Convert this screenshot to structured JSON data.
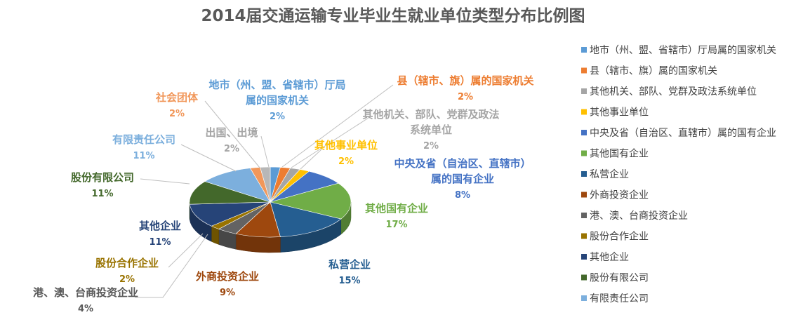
{
  "chart_data": {
    "type": "pie",
    "title": "2014届交通运输专业毕业生就业单位类型分布比例图",
    "legend_position": "right",
    "slices": [
      {
        "name": "地市（州、盟、省辖市）厅局属的国家机关",
        "label_lines": [
          "地市（州、盟、省辖市）厅局",
          "属的国家机关"
        ],
        "value": 2,
        "pct_label": "2%",
        "color": "#5b9bd5"
      },
      {
        "name": "县（辖市、旗）属的国家机关",
        "label_lines": [
          "县（辖市、旗）属的国家机关"
        ],
        "value": 2,
        "pct_label": "2%",
        "color": "#ed7d31"
      },
      {
        "name": "其他机关、部队、党群及政法系统单位",
        "label_lines": [
          "其他机关、部队、党群及政法",
          "系统单位"
        ],
        "value": 2,
        "pct_label": "2%",
        "color": "#a5a5a5"
      },
      {
        "name": "其他事业单位",
        "label_lines": [
          "其他事业单位"
        ],
        "value": 2,
        "pct_label": "2%",
        "color": "#ffc000"
      },
      {
        "name": "中央及省（自治区、直辖市）属的国有企业",
        "label_lines": [
          "中央及省（自治区、直辖市）",
          "属的国有企业"
        ],
        "value": 8,
        "pct_label": "8%",
        "color": "#4472c4"
      },
      {
        "name": "其他国有企业",
        "label_lines": [
          "其他国有企业"
        ],
        "value": 17,
        "pct_label": "17%",
        "color": "#70ad47"
      },
      {
        "name": "私营企业",
        "label_lines": [
          "私营企业"
        ],
        "value": 15,
        "pct_label": "15%",
        "color": "#255e91"
      },
      {
        "name": "外商投资企业",
        "label_lines": [
          "外商投资企业"
        ],
        "value": 9,
        "pct_label": "9%",
        "color": "#9e480e"
      },
      {
        "name": "港、澳、台商投资企业",
        "label_lines": [
          "港、澳、台商投资企业"
        ],
        "value": 4,
        "pct_label": "4%",
        "color": "#636363"
      },
      {
        "name": "股份合作企业",
        "label_lines": [
          "股份合作企业"
        ],
        "value": 2,
        "pct_label": "2%",
        "color": "#997300"
      },
      {
        "name": "其他企业",
        "label_lines": [
          "其他企业"
        ],
        "value": 11,
        "pct_label": "11%",
        "color": "#264478"
      },
      {
        "name": "股份有限公司",
        "label_lines": [
          "股份有限公司"
        ],
        "value": 11,
        "pct_label": "11%",
        "color": "#43682b"
      },
      {
        "name": "有限责任公司",
        "label_lines": [
          "有限责任公司"
        ],
        "value": 11,
        "pct_label": "11%",
        "color": "#7cafdd"
      },
      {
        "name": "社会团体",
        "label_lines": [
          "社会团体"
        ],
        "value": 2,
        "pct_label": "2%",
        "color": "#f1975a"
      },
      {
        "name": "出国、出境",
        "label_lines": [
          "出国、出境"
        ],
        "value": 2,
        "pct_label": "2%",
        "color": "#b7b7b7"
      }
    ],
    "legend": [
      "地市（州、盟、省辖市）厅局属的国家机关",
      "县（辖市、旗）属的国家机关",
      "其他机关、部队、党群及政法系统单位",
      "其他事业单位",
      "中央及省（自治区、直辖市）属的国有企业",
      "其他国有企业",
      "私营企业",
      "外商投资企业",
      "港、澳、台商投资企业",
      "股份合作企业",
      "其他企业",
      "股份有限公司",
      "有限责任公司"
    ]
  }
}
